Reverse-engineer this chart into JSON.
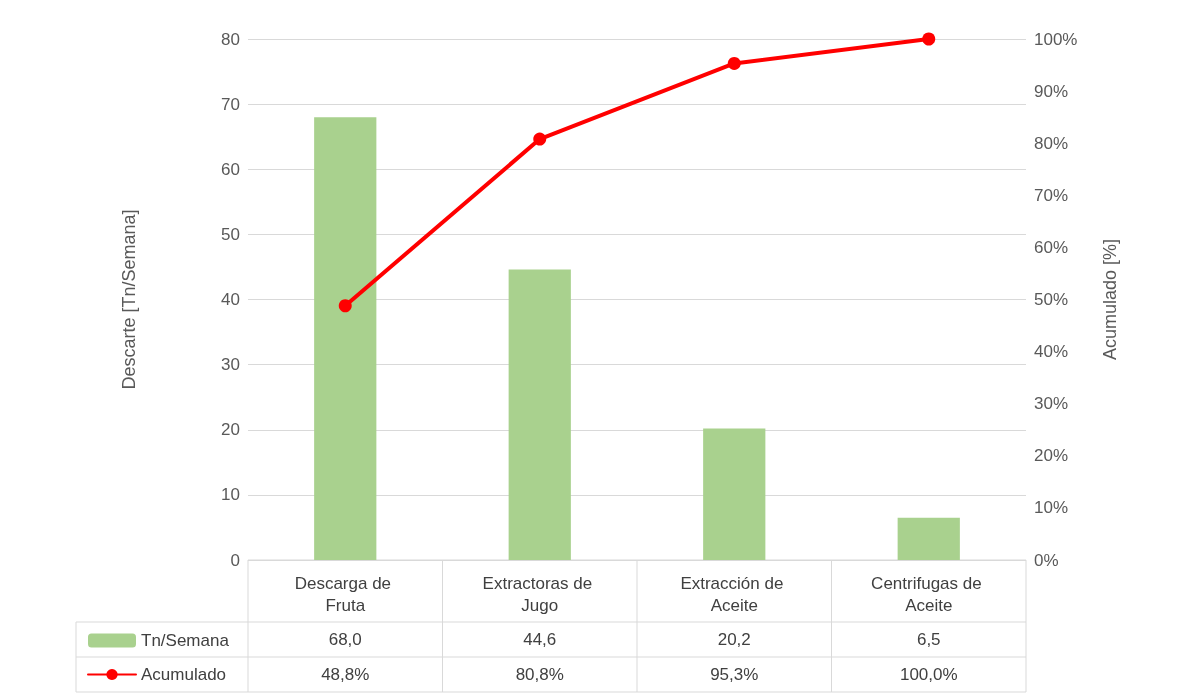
{
  "chart_data": {
    "type": "bar",
    "ylabel": "Descarte [Tn/Semana]",
    "y2label": "Acumulado [%]",
    "categories": [
      "Descarga de Fruta",
      "Extractoras de Jugo",
      "Extracción de Aceite",
      "Centrifugas de Aceite"
    ],
    "series": [
      {
        "name": "Tn/Semana",
        "color": "#a9d18e",
        "values": [
          68.0,
          44.6,
          20.2,
          6.5
        ],
        "value_labels": [
          "68,0",
          "44,6",
          "20,2",
          "6,5"
        ]
      },
      {
        "name": "Acumulado",
        "type": "line",
        "axis": "y2",
        "color": "#ff0000",
        "marker": "circle",
        "values": [
          48.8,
          80.8,
          95.3,
          100.0
        ],
        "value_labels": [
          "48,8%",
          "80,8%",
          "95,3%",
          "100,0%"
        ]
      }
    ],
    "ylim": [
      0,
      80
    ],
    "yticks": [
      0,
      10,
      20,
      30,
      40,
      50,
      60,
      70,
      80
    ],
    "y2lim": [
      0,
      100
    ],
    "y2ticks": [
      {
        "value": 0,
        "label": "0%"
      },
      {
        "value": 10,
        "label": "10%"
      },
      {
        "value": 20,
        "label": "20%"
      },
      {
        "value": 30,
        "label": "30%"
      },
      {
        "value": 40,
        "label": "40%"
      },
      {
        "value": 50,
        "label": "50%"
      },
      {
        "value": 60,
        "label": "60%"
      },
      {
        "value": 70,
        "label": "70%"
      },
      {
        "value": 80,
        "label": "80%"
      },
      {
        "value": 90,
        "label": "90%"
      },
      {
        "value": 100,
        "label": "100%"
      }
    ],
    "grid": "y",
    "legend": "bottom left"
  }
}
